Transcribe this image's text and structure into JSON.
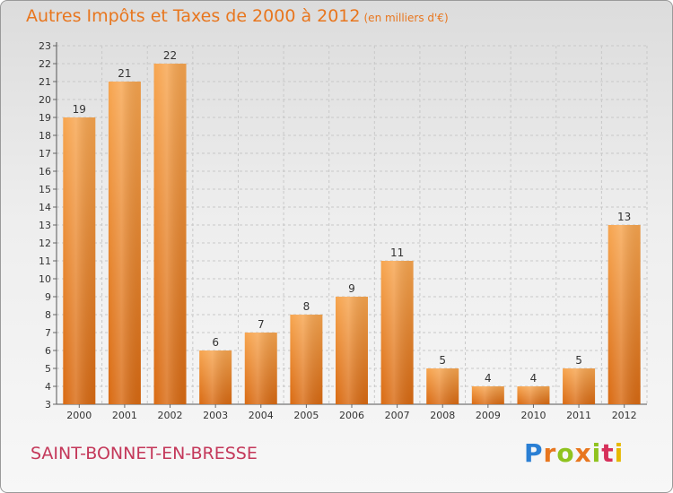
{
  "title": "Autres Impôts et Taxes de 2000 à 2012",
  "subtitle": "(en milliers d'€)",
  "commune": "SAINT-BONNET-EN-BRESSE",
  "logo": {
    "letters": [
      "P",
      "r",
      "o",
      "x",
      "i",
      "t",
      "i"
    ],
    "colors": [
      "#2a7fd4",
      "#e8761e",
      "#8fc31f",
      "#e8761e",
      "#8fc31f",
      "#d6305a",
      "#e6b800"
    ]
  },
  "colors": {
    "title": "#e8761e",
    "commune": "#c4385a",
    "bar_light": "#f7a54f",
    "bar_dark": "#d96a12",
    "grid": "#c8c8c8"
  },
  "chart_data": {
    "type": "bar",
    "categories": [
      "2000",
      "2001",
      "2002",
      "2003",
      "2004",
      "2005",
      "2006",
      "2007",
      "2008",
      "2009",
      "2010",
      "2011",
      "2012"
    ],
    "values": [
      19,
      21,
      22,
      6,
      7,
      8,
      9,
      11,
      5,
      4,
      4,
      5,
      13
    ],
    "ylim": [
      3,
      23
    ],
    "yticks": [
      3,
      4,
      5,
      6,
      7,
      8,
      9,
      10,
      11,
      12,
      13,
      14,
      15,
      16,
      17,
      18,
      19,
      20,
      21,
      22,
      23
    ],
    "grid": true,
    "data_labels": true
  }
}
